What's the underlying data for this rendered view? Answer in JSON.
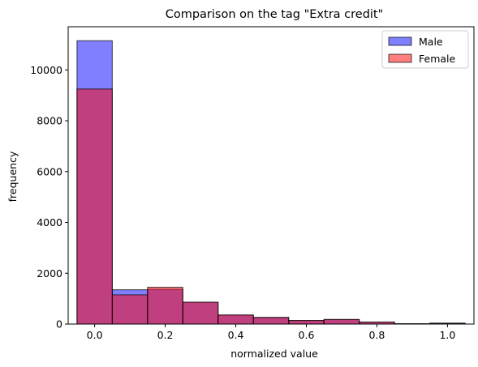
{
  "chart_data": {
    "type": "bar",
    "title": "Comparison on the tag \"Extra credit\"",
    "xlabel": "normalized value",
    "ylabel": "frequency",
    "xlim": [
      -0.075,
      1.075
    ],
    "ylim": [
      0,
      11700
    ],
    "xticks": [
      0.0,
      0.2,
      0.4,
      0.6,
      0.8,
      1.0
    ],
    "xtick_labels": [
      "0.0",
      "0.2",
      "0.4",
      "0.6",
      "0.8",
      "1.0"
    ],
    "yticks": [
      0,
      2000,
      4000,
      6000,
      8000,
      10000
    ],
    "ytick_labels": [
      "0",
      "2000",
      "4000",
      "6000",
      "8000",
      "10000"
    ],
    "bin_edges": [
      -0.05,
      0.05,
      0.15,
      0.25,
      0.35,
      0.45,
      0.55,
      0.65,
      0.75,
      0.85,
      0.95,
      1.05
    ],
    "series": [
      {
        "name": "Male",
        "color": "#0000ff",
        "opacity": 0.5,
        "values": [
          11150,
          1350,
          1370,
          860,
          350,
          260,
          140,
          180,
          80,
          15,
          40
        ]
      },
      {
        "name": "Female",
        "color": "#ff0000",
        "opacity": 0.5,
        "values": [
          9250,
          1150,
          1450,
          860,
          360,
          260,
          140,
          180,
          80,
          10,
          20
        ]
      }
    ],
    "legend_position": "top-right",
    "edge_color": "#000000"
  }
}
